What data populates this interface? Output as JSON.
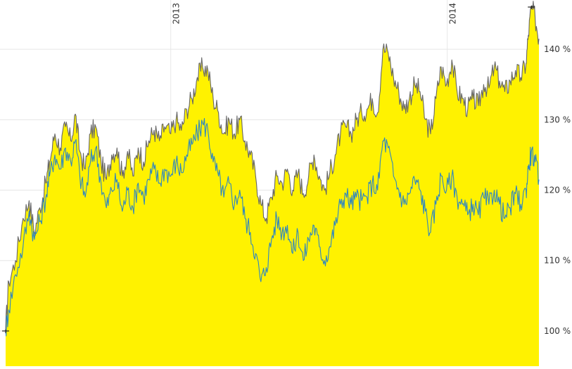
{
  "chart_data": {
    "type": "area",
    "title": "",
    "xlabel": "",
    "ylabel": "",
    "x_range": [
      "2012-05-28",
      "2014-05-02"
    ],
    "ylim": [
      95,
      147
    ],
    "x_ticks": [
      {
        "date": "2013-01-01",
        "label": "2013"
      },
      {
        "date": "2014-01-01",
        "label": "2014"
      }
    ],
    "y_ticks": [
      {
        "value": 100,
        "label": "100 %"
      },
      {
        "value": 110,
        "label": "110 %"
      },
      {
        "value": 120,
        "label": "120 %"
      },
      {
        "value": 130,
        "label": "130 %"
      },
      {
        "value": 140,
        "label": "140 %"
      }
    ],
    "grid": true,
    "series": [
      {
        "color": "#666666",
        "fill": "#FFF200",
        "points": [
          [
            "2012-05-28",
            100.0
          ],
          [
            "2012-06-01",
            107.0
          ],
          [
            "2012-06-10",
            110.0
          ],
          [
            "2012-06-20",
            116.0
          ],
          [
            "2012-06-28",
            118.5
          ],
          [
            "2012-07-05",
            114.0
          ],
          [
            "2012-07-12",
            117.5
          ],
          [
            "2012-07-20",
            121.0
          ],
          [
            "2012-07-25",
            124.0
          ],
          [
            "2012-08-01",
            128.0
          ],
          [
            "2012-08-08",
            126.0
          ],
          [
            "2012-08-15",
            129.0
          ],
          [
            "2012-08-22",
            127.0
          ],
          [
            "2012-08-28",
            130.8
          ],
          [
            "2012-09-03",
            125.5
          ],
          [
            "2012-09-10",
            123.0
          ],
          [
            "2012-09-17",
            128.0
          ],
          [
            "2012-09-24",
            129.0
          ],
          [
            "2012-10-01",
            124.0
          ],
          [
            "2012-10-08",
            121.5
          ],
          [
            "2012-10-15",
            125.0
          ],
          [
            "2012-10-22",
            126.0
          ],
          [
            "2012-10-29",
            122.0
          ],
          [
            "2012-11-05",
            125.5
          ],
          [
            "2012-11-12",
            122.0
          ],
          [
            "2012-11-19",
            126.0
          ],
          [
            "2012-11-26",
            124.0
          ],
          [
            "2012-12-03",
            127.0
          ],
          [
            "2012-12-10",
            128.5
          ],
          [
            "2012-12-17",
            127.0
          ],
          [
            "2012-12-24",
            129.0
          ],
          [
            "2013-01-01",
            128.0
          ],
          [
            "2013-01-08",
            130.0
          ],
          [
            "2013-01-15",
            128.5
          ],
          [
            "2013-01-22",
            131.5
          ],
          [
            "2013-01-29",
            133.0
          ],
          [
            "2013-02-05",
            136.0
          ],
          [
            "2013-02-12",
            137.5
          ],
          [
            "2013-02-19",
            137.0
          ],
          [
            "2013-02-26",
            133.0
          ],
          [
            "2013-03-05",
            131.0
          ],
          [
            "2013-03-12",
            128.0
          ],
          [
            "2013-03-19",
            130.0
          ],
          [
            "2013-03-26",
            128.0
          ],
          [
            "2013-04-02",
            130.0
          ],
          [
            "2013-04-09",
            127.0
          ],
          [
            "2013-04-16",
            125.0
          ],
          [
            "2013-04-23",
            122.0
          ],
          [
            "2013-04-30",
            118.0
          ],
          [
            "2013-05-07",
            116.0
          ],
          [
            "2013-05-14",
            119.0
          ],
          [
            "2013-05-21",
            122.0
          ],
          [
            "2013-05-28",
            121.0
          ],
          [
            "2013-06-04",
            123.0
          ],
          [
            "2013-06-11",
            120.0
          ],
          [
            "2013-06-18",
            122.5
          ],
          [
            "2013-06-25",
            119.5
          ],
          [
            "2013-07-02",
            122.0
          ],
          [
            "2013-07-09",
            125.0
          ],
          [
            "2013-07-16",
            122.0
          ],
          [
            "2013-07-23",
            120.0
          ],
          [
            "2013-07-30",
            122.5
          ],
          [
            "2013-08-06",
            125.0
          ],
          [
            "2013-08-13",
            128.0
          ],
          [
            "2013-08-20",
            129.0
          ],
          [
            "2013-08-27",
            128.0
          ],
          [
            "2013-09-03",
            130.0
          ],
          [
            "2013-09-10",
            131.0
          ],
          [
            "2013-09-17",
            131.5
          ],
          [
            "2013-09-24",
            133.0
          ],
          [
            "2013-10-01",
            131.0
          ],
          [
            "2013-10-08",
            140.0
          ],
          [
            "2013-10-15",
            139.5
          ],
          [
            "2013-10-22",
            136.0
          ],
          [
            "2013-10-29",
            134.0
          ],
          [
            "2013-11-05",
            131.5
          ],
          [
            "2013-11-12",
            133.0
          ],
          [
            "2013-11-19",
            135.0
          ],
          [
            "2013-11-26",
            134.0
          ],
          [
            "2013-12-03",
            130.0
          ],
          [
            "2013-12-10",
            128.0
          ],
          [
            "2013-12-17",
            133.0
          ],
          [
            "2013-12-24",
            137.5
          ],
          [
            "2013-12-31",
            135.0
          ],
          [
            "2014-01-07",
            138.5
          ],
          [
            "2014-01-14",
            134.0
          ],
          [
            "2014-01-21",
            133.0
          ],
          [
            "2014-01-28",
            131.5
          ],
          [
            "2014-02-04",
            133.0
          ],
          [
            "2014-02-11",
            132.0
          ],
          [
            "2014-02-18",
            135.0
          ],
          [
            "2014-02-25",
            134.5
          ],
          [
            "2014-03-04",
            137.5
          ],
          [
            "2014-03-11",
            135.5
          ],
          [
            "2014-03-18",
            134.0
          ],
          [
            "2014-03-25",
            135.5
          ],
          [
            "2014-04-01",
            137.0
          ],
          [
            "2014-04-08",
            136.0
          ],
          [
            "2014-04-15",
            138.0
          ],
          [
            "2014-04-18",
            142.0
          ],
          [
            "2014-04-22",
            146.0
          ],
          [
            "2014-04-27",
            144.5
          ],
          [
            "2014-05-02",
            141.5
          ]
        ]
      },
      {
        "color": "#2E86C1",
        "points": [
          [
            "2012-05-28",
            100.0
          ],
          [
            "2012-06-01",
            103.0
          ],
          [
            "2012-06-10",
            108.0
          ],
          [
            "2012-06-20",
            112.0
          ],
          [
            "2012-06-28",
            117.0
          ],
          [
            "2012-07-05",
            113.0
          ],
          [
            "2012-07-12",
            115.5
          ],
          [
            "2012-07-20",
            119.0
          ],
          [
            "2012-07-25",
            122.0
          ],
          [
            "2012-08-01",
            125.0
          ],
          [
            "2012-08-08",
            123.0
          ],
          [
            "2012-08-15",
            126.0
          ],
          [
            "2012-08-22",
            124.0
          ],
          [
            "2012-08-28",
            127.0
          ],
          [
            "2012-09-03",
            122.0
          ],
          [
            "2012-09-10",
            119.0
          ],
          [
            "2012-09-17",
            124.0
          ],
          [
            "2012-09-24",
            126.0
          ],
          [
            "2012-10-01",
            121.0
          ],
          [
            "2012-10-08",
            117.5
          ],
          [
            "2012-10-15",
            120.0
          ],
          [
            "2012-10-22",
            121.5
          ],
          [
            "2012-10-29",
            117.0
          ],
          [
            "2012-11-05",
            120.0
          ],
          [
            "2012-11-12",
            117.5
          ],
          [
            "2012-11-19",
            121.0
          ],
          [
            "2012-11-26",
            119.0
          ],
          [
            "2012-12-03",
            121.5
          ],
          [
            "2012-12-10",
            123.0
          ],
          [
            "2012-12-17",
            121.0
          ],
          [
            "2012-12-24",
            123.0
          ],
          [
            "2013-01-01",
            122.0
          ],
          [
            "2013-01-08",
            124.0
          ],
          [
            "2013-01-15",
            122.5
          ],
          [
            "2013-01-22",
            125.0
          ],
          [
            "2013-01-29",
            126.5
          ],
          [
            "2013-02-05",
            128.0
          ],
          [
            "2013-02-12",
            129.5
          ],
          [
            "2013-02-19",
            128.5
          ],
          [
            "2013-02-26",
            124.0
          ],
          [
            "2013-03-05",
            122.0
          ],
          [
            "2013-03-12",
            119.0
          ],
          [
            "2013-03-19",
            121.0
          ],
          [
            "2013-03-26",
            118.0
          ],
          [
            "2013-04-02",
            120.0
          ],
          [
            "2013-04-09",
            116.0
          ],
          [
            "2013-04-16",
            114.0
          ],
          [
            "2013-04-23",
            111.0
          ],
          [
            "2013-04-30",
            107.0
          ],
          [
            "2013-05-07",
            109.0
          ],
          [
            "2013-05-14",
            113.0
          ],
          [
            "2013-05-21",
            116.0
          ],
          [
            "2013-05-28",
            114.0
          ],
          [
            "2013-06-04",
            115.0
          ],
          [
            "2013-06-11",
            111.0
          ],
          [
            "2013-06-18",
            114.0
          ],
          [
            "2013-06-25",
            110.0
          ],
          [
            "2013-07-02",
            113.0
          ],
          [
            "2013-07-09",
            115.0
          ],
          [
            "2013-07-16",
            112.0
          ],
          [
            "2013-07-23",
            110.0
          ],
          [
            "2013-07-30",
            112.0
          ],
          [
            "2013-08-06",
            115.0
          ],
          [
            "2013-08-13",
            118.0
          ],
          [
            "2013-08-20",
            119.5
          ],
          [
            "2013-08-27",
            118.0
          ],
          [
            "2013-09-03",
            119.0
          ],
          [
            "2013-09-10",
            118.5
          ],
          [
            "2013-09-17",
            119.0
          ],
          [
            "2013-09-24",
            121.0
          ],
          [
            "2013-10-01",
            120.0
          ],
          [
            "2013-10-08",
            127.0
          ],
          [
            "2013-10-15",
            126.0
          ],
          [
            "2013-10-22",
            122.0
          ],
          [
            "2013-10-29",
            120.0
          ],
          [
            "2013-11-05",
            118.0
          ],
          [
            "2013-11-12",
            119.5
          ],
          [
            "2013-11-19",
            121.5
          ],
          [
            "2013-11-26",
            120.0
          ],
          [
            "2013-12-03",
            117.0
          ],
          [
            "2013-12-10",
            114.0
          ],
          [
            "2013-12-17",
            118.0
          ],
          [
            "2013-12-24",
            122.0
          ],
          [
            "2013-12-31",
            120.0
          ],
          [
            "2014-01-07",
            122.0
          ],
          [
            "2014-01-14",
            119.0
          ],
          [
            "2014-01-21",
            118.0
          ],
          [
            "2014-01-28",
            116.5
          ],
          [
            "2014-02-04",
            118.0
          ],
          [
            "2014-02-11",
            116.5
          ],
          [
            "2014-02-18",
            119.0
          ],
          [
            "2014-02-25",
            118.0
          ],
          [
            "2014-03-04",
            120.0
          ],
          [
            "2014-03-11",
            118.0
          ],
          [
            "2014-03-18",
            116.0
          ],
          [
            "2014-03-25",
            117.5
          ],
          [
            "2014-04-01",
            119.5
          ],
          [
            "2014-04-08",
            118.0
          ],
          [
            "2014-04-15",
            120.0
          ],
          [
            "2014-04-18",
            123.0
          ],
          [
            "2014-04-22",
            125.5
          ],
          [
            "2014-04-27",
            124.0
          ],
          [
            "2014-05-02",
            121.5
          ]
        ]
      }
    ],
    "markers": [
      {
        "date": "2012-05-28",
        "value": 100.0
      },
      {
        "date": "2014-04-22",
        "value": 146.0
      }
    ]
  }
}
